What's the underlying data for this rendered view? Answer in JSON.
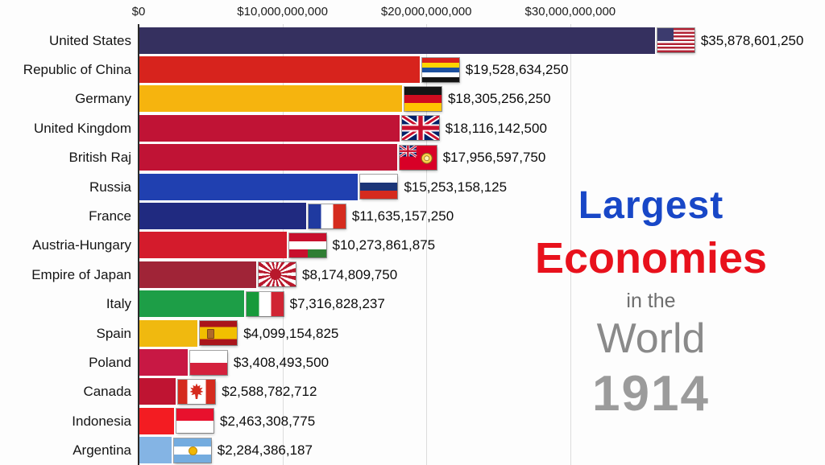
{
  "chart_data": {
    "type": "bar",
    "orientation": "horizontal",
    "title": "Largest Economies in the World 1914",
    "xlim": [
      0,
      36000000000
    ],
    "grid": true,
    "legend": false,
    "x_ticks": [
      {
        "label": "$0",
        "value": 0
      },
      {
        "label": "$10,000,000,000",
        "value": 10000000000
      },
      {
        "label": "$20,000,000,000",
        "value": 20000000000
      },
      {
        "label": "$30,000,000,000",
        "value": 30000000000
      }
    ],
    "rows": [
      {
        "label": "United States",
        "value": 35878601250,
        "display": "$35,878,601,250",
        "color": "#35305f",
        "flag": "us"
      },
      {
        "label": "Republic of China",
        "value": 19528634250,
        "display": "$19,528,634,250",
        "color": "#d7231d",
        "flag": "china"
      },
      {
        "label": "Germany",
        "value": 18305256250,
        "display": "$18,305,256,250",
        "color": "#f6b40e",
        "flag": "germany"
      },
      {
        "label": "United Kingdom",
        "value": 18116142500,
        "display": "$18,116,142,500",
        "color": "#c01335",
        "flag": "uk"
      },
      {
        "label": "British Raj",
        "value": 17956597750,
        "display": "$17,956,597,750",
        "color": "#c01335",
        "flag": "british-raj"
      },
      {
        "label": "Russia",
        "value": 15253158125,
        "display": "$15,253,158,125",
        "color": "#2040b0",
        "flag": "russia"
      },
      {
        "label": "France",
        "value": 11635157250,
        "display": "$11,635,157,250",
        "color": "#202a80",
        "flag": "france"
      },
      {
        "label": "Austria-Hungary",
        "value": 10273861875,
        "display": "$10,273,861,875",
        "color": "#d41b2c",
        "flag": "austria-hungary"
      },
      {
        "label": "Empire of Japan",
        "value": 8174809750,
        "display": "$8,174,809,750",
        "color": "#a02437",
        "flag": "japan"
      },
      {
        "label": "Italy",
        "value": 7316828237,
        "display": "$7,316,828,237",
        "color": "#1d9e47",
        "flag": "italy"
      },
      {
        "label": "Spain",
        "value": 4099154825,
        "display": "$4,099,154,825",
        "color": "#f0b90f",
        "flag": "spain"
      },
      {
        "label": "Poland",
        "value": 3408493500,
        "display": "$3,408,493,500",
        "color": "#c81844",
        "flag": "poland"
      },
      {
        "label": "Canada",
        "value": 2588782712,
        "display": "$2,588,782,712",
        "color": "#bf1432",
        "flag": "canada"
      },
      {
        "label": "Indonesia",
        "value": 2463308775,
        "display": "$2,463,308,775",
        "color": "#f31c22",
        "flag": "indonesia"
      },
      {
        "label": "Argentina",
        "value": 2284386187,
        "display": "$2,284,386,187",
        "color": "#84b4e4",
        "flag": "argentina"
      }
    ]
  },
  "title_overlay": {
    "line1": "Largest",
    "line2": "Economies",
    "line3": "in the",
    "line4": "World",
    "year": "1914",
    "colors": {
      "line1": "#1847c7",
      "line2": "#e8111c",
      "line3": "#6e6e6e",
      "line4": "#8a8a8a",
      "year": "#9b9b9b"
    }
  }
}
